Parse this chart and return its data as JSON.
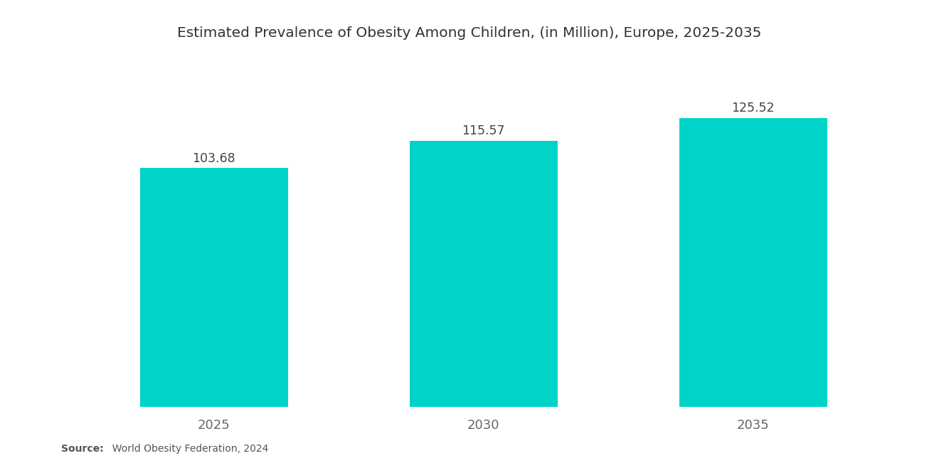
{
  "title": "Estimated Prevalence of Obesity Among Children, (in Million), Europe, 2025-2035",
  "categories": [
    "2025",
    "2030",
    "2035"
  ],
  "values": [
    103.68,
    115.57,
    125.52
  ],
  "bar_color": "#00D4C8",
  "background_color": "#ffffff",
  "title_fontsize": 14.5,
  "label_fontsize": 12.5,
  "tick_fontsize": 13,
  "source_bold": "Source:",
  "source_rest": "  World Obesity Federation, 2024",
  "ylim": [
    0,
    148
  ],
  "bar_width": 0.55,
  "xlim": [
    -0.55,
    2.55
  ]
}
